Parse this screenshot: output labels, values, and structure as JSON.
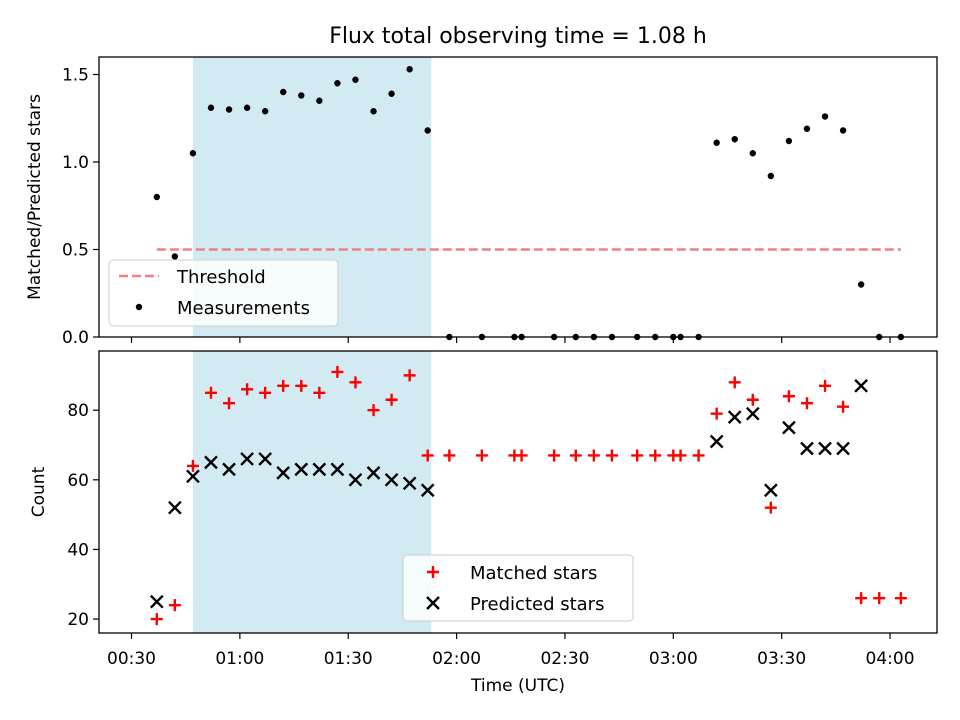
{
  "chart_data": [
    {
      "type": "scatter",
      "title": "Flux total observing time = 1.08 h",
      "xlabel": "",
      "ylabel": "Matched/Predicted stars",
      "ylim": [
        0,
        1.6
      ],
      "xlim_minutes": [
        21,
        253
      ],
      "yticks": [
        0.0,
        0.5,
        1.0,
        1.5
      ],
      "ytick_labels": [
        "0.0",
        "0.5",
        "1.0",
        "1.5"
      ],
      "shaded_span": {
        "from": "00:47",
        "to": "01:53",
        "color": "#add8e6"
      },
      "threshold": {
        "name": "Threshold",
        "value": 0.5,
        "x": [
          "00:37",
          "04:03"
        ],
        "color": "#f08080"
      },
      "series": [
        {
          "name": "Measurements",
          "color": "#000000",
          "marker": "dot",
          "points": [
            [
              "00:37",
              0.8
            ],
            [
              "00:42",
              0.46
            ],
            [
              "00:47",
              1.05
            ],
            [
              "00:52",
              1.31
            ],
            [
              "00:57",
              1.3
            ],
            [
              "01:02",
              1.31
            ],
            [
              "01:07",
              1.29
            ],
            [
              "01:12",
              1.4
            ],
            [
              "01:17",
              1.38
            ],
            [
              "01:22",
              1.35
            ],
            [
              "01:27",
              1.45
            ],
            [
              "01:32",
              1.47
            ],
            [
              "01:37",
              1.29
            ],
            [
              "01:42",
              1.39
            ],
            [
              "01:47",
              1.53
            ],
            [
              "01:52",
              1.18
            ],
            [
              "01:58",
              0.0
            ],
            [
              "02:07",
              0.0
            ],
            [
              "02:16",
              0.0
            ],
            [
              "02:18",
              0.0
            ],
            [
              "02:27",
              0.0
            ],
            [
              "02:33",
              0.0
            ],
            [
              "02:38",
              0.0
            ],
            [
              "02:43",
              0.0
            ],
            [
              "02:50",
              0.0
            ],
            [
              "02:55",
              0.0
            ],
            [
              "02:60",
              0.0
            ],
            [
              "03:02",
              0.0
            ],
            [
              "03:07",
              0.0
            ],
            [
              "03:12",
              1.11
            ],
            [
              "03:17",
              1.13
            ],
            [
              "03:22",
              1.05
            ],
            [
              "03:27",
              0.92
            ],
            [
              "03:32",
              1.12
            ],
            [
              "03:37",
              1.19
            ],
            [
              "03:42",
              1.26
            ],
            [
              "03:47",
              1.18
            ],
            [
              "03:52",
              0.3
            ],
            [
              "03:57",
              0.0
            ],
            [
              "04:03",
              0.0
            ]
          ]
        }
      ],
      "legend": {
        "placement": "lower-left",
        "entries": [
          "Threshold",
          "Measurements"
        ]
      }
    },
    {
      "type": "scatter",
      "title": "",
      "xlabel": "Time (UTC)",
      "ylabel": "Count",
      "ylim": [
        16,
        97
      ],
      "xlim_minutes": [
        21,
        253
      ],
      "yticks": [
        20,
        40,
        60,
        80
      ],
      "ytick_labels": [
        "20",
        "40",
        "60",
        "80"
      ],
      "xtick_labels": [
        "00:30",
        "01:00",
        "01:30",
        "02:00",
        "02:30",
        "03:00",
        "03:30",
        "04:00"
      ],
      "shaded_span": {
        "from": "00:47",
        "to": "01:53",
        "color": "#add8e6"
      },
      "series": [
        {
          "name": "Matched stars",
          "color": "#ff0000",
          "marker": "plus",
          "points": [
            [
              "00:37",
              20
            ],
            [
              "00:42",
              24
            ],
            [
              "00:47",
              64
            ],
            [
              "00:52",
              85
            ],
            [
              "00:57",
              82
            ],
            [
              "01:02",
              86
            ],
            [
              "01:07",
              85
            ],
            [
              "01:12",
              87
            ],
            [
              "01:17",
              87
            ],
            [
              "01:22",
              85
            ],
            [
              "01:27",
              91
            ],
            [
              "01:32",
              88
            ],
            [
              "01:37",
              80
            ],
            [
              "01:42",
              83
            ],
            [
              "01:47",
              90
            ],
            [
              "01:52",
              67
            ],
            [
              "01:58",
              67
            ],
            [
              "02:07",
              67
            ],
            [
              "02:16",
              67
            ],
            [
              "02:18",
              67
            ],
            [
              "02:27",
              67
            ],
            [
              "02:33",
              67
            ],
            [
              "02:38",
              67
            ],
            [
              "02:43",
              67
            ],
            [
              "02:50",
              67
            ],
            [
              "02:55",
              67
            ],
            [
              "02:60",
              67
            ],
            [
              "03:02",
              67
            ],
            [
              "03:07",
              67
            ],
            [
              "03:12",
              79
            ],
            [
              "03:17",
              88
            ],
            [
              "03:22",
              83
            ],
            [
              "03:27",
              52
            ],
            [
              "03:32",
              84
            ],
            [
              "03:37",
              82
            ],
            [
              "03:42",
              87
            ],
            [
              "03:47",
              81
            ],
            [
              "03:52",
              26
            ],
            [
              "03:57",
              26
            ],
            [
              "04:03",
              26
            ]
          ]
        },
        {
          "name": "Predicted stars",
          "color": "#000000",
          "marker": "x",
          "points": [
            [
              "00:37",
              25
            ],
            [
              "00:42",
              52
            ],
            [
              "00:47",
              61
            ],
            [
              "00:52",
              65
            ],
            [
              "00:57",
              63
            ],
            [
              "01:02",
              66
            ],
            [
              "01:07",
              66
            ],
            [
              "01:12",
              62
            ],
            [
              "01:17",
              63
            ],
            [
              "01:22",
              63
            ],
            [
              "01:27",
              63
            ],
            [
              "01:32",
              60
            ],
            [
              "01:37",
              62
            ],
            [
              "01:42",
              60
            ],
            [
              "01:47",
              59
            ],
            [
              "01:52",
              57
            ],
            [
              "03:12",
              71
            ],
            [
              "03:17",
              78
            ],
            [
              "03:22",
              79
            ],
            [
              "03:27",
              57
            ],
            [
              "03:32",
              75
            ],
            [
              "03:37",
              69
            ],
            [
              "03:42",
              69
            ],
            [
              "03:47",
              69
            ],
            [
              "03:52",
              87
            ]
          ]
        }
      ],
      "legend": {
        "placement": "lower-center",
        "entries": [
          "Matched stars",
          "Predicted stars"
        ]
      }
    }
  ]
}
